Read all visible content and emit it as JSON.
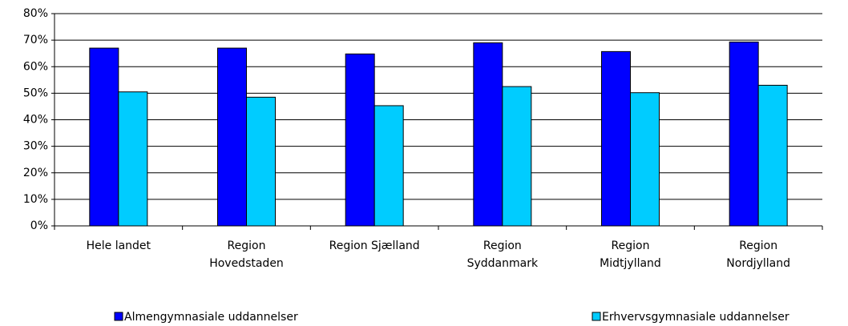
{
  "chart_data": {
    "type": "bar",
    "categories": [
      "Hele landet",
      "Region\nHovedstaden",
      "Region Sjælland",
      "Region\nSyddanmark",
      "Region\nMidtjylland",
      "Region\nNordjylland"
    ],
    "series": [
      {
        "name": "Almengymnasiale uddannelser",
        "color": "#0000ff",
        "values": [
          67,
          67,
          64.8,
          69,
          65.7,
          69.3
        ]
      },
      {
        "name": "Erhvervsgymnasiale uddannelser",
        "color": "#00ccff",
        "values": [
          50.5,
          48.5,
          45.3,
          52.5,
          50.2,
          53
        ]
      }
    ],
    "ylim": [
      0,
      80
    ],
    "yticks": [
      {
        "value": 0,
        "label": "0%"
      },
      {
        "value": 10,
        "label": "10%"
      },
      {
        "value": 20,
        "label": "20%"
      },
      {
        "value": 30,
        "label": "30%"
      },
      {
        "value": 40,
        "label": "40%"
      },
      {
        "value": 50,
        "label": "50%"
      },
      {
        "value": 60,
        "label": "60%"
      },
      {
        "value": 70,
        "label": "70%"
      },
      {
        "value": 80,
        "label": "80%"
      }
    ],
    "grid": true
  }
}
